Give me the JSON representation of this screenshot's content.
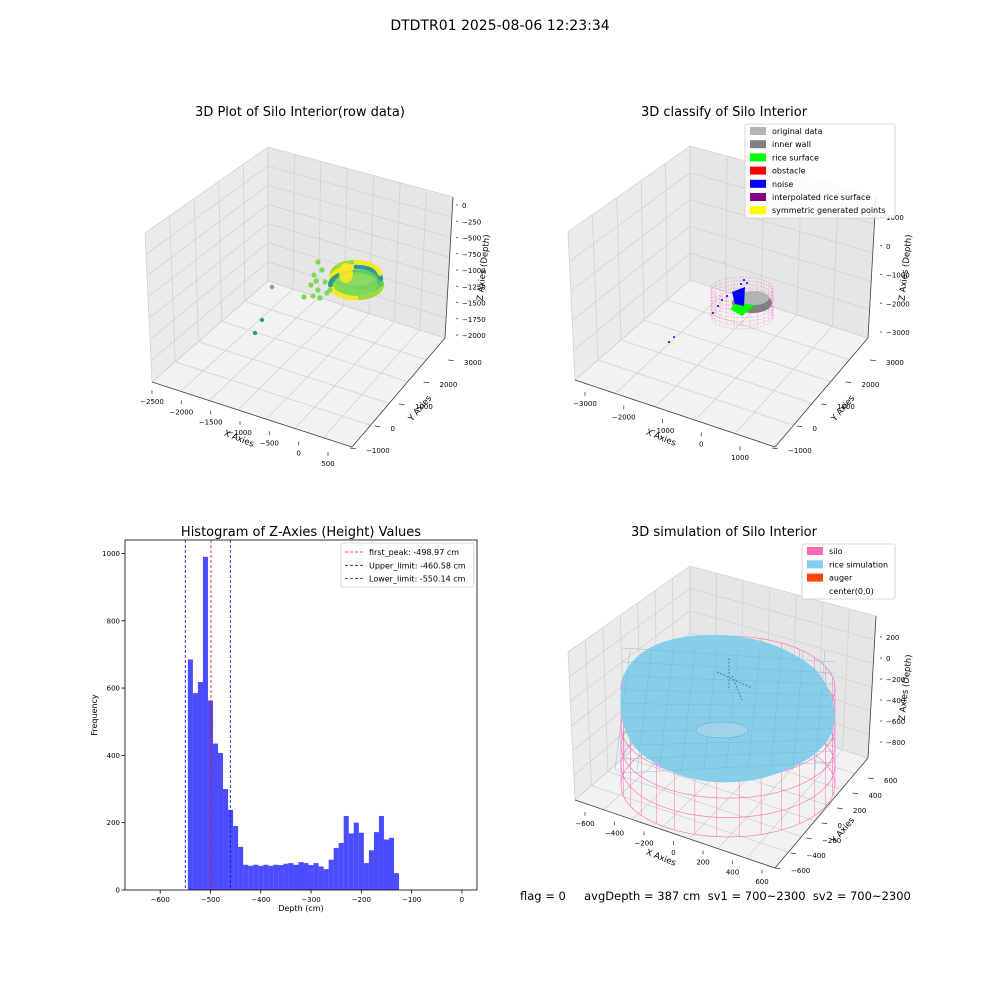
{
  "suptitle": "DTDTR01 2025-08-06 12:23:34",
  "footer": {
    "text": "flag = 0     avgDepth = 387 cm  sv1 = 700~2300  sv2 = 700~2300"
  },
  "chart_data": [
    {
      "type": "scatter",
      "title": "3D Plot of Silo Interior(row data)",
      "xlabel": "X Axies",
      "ylabel": "Y Axies",
      "zlabel": "Z Axies (Depth)",
      "xticks": [
        "−2500",
        "−2000",
        "−1500",
        "−1000",
        "−500",
        "0",
        "500"
      ],
      "yticks": [
        "−1000",
        "0",
        "1000",
        "2000",
        "3000"
      ],
      "zticks": [
        "0",
        "−250",
        "−500",
        "−750",
        "−1000",
        "−1250",
        "−1500",
        "−1750",
        "−2000"
      ],
      "colormap": [
        "#2a9d8f",
        "#5cc863",
        "#a0da39",
        "#fde725"
      ],
      "outliers": [
        {
          "x": -2300,
          "y": 200,
          "z": -1700
        },
        {
          "x": -2100,
          "y": 300,
          "z": -1600
        },
        {
          "x": -1900,
          "y": 1800,
          "z": -1350
        }
      ]
    },
    {
      "type": "scatter",
      "title": "3D classify of Silo Interior",
      "xlabel": "X Axies",
      "ylabel": "Y Axies",
      "zlabel": "Z Axies (Depth)",
      "xticks": [
        "−3000",
        "−2000",
        "−1000",
        "0",
        "1000"
      ],
      "yticks": [
        "−1000",
        "0",
        "1000",
        "2000",
        "3000"
      ],
      "zticks": [
        "1000",
        "0",
        "−1000",
        "−2000",
        "−3000"
      ],
      "legend_position": "top-right",
      "legend": [
        {
          "label": "original data",
          "color": "#b3b3b3"
        },
        {
          "label": "inner wall",
          "color": "#808080"
        },
        {
          "label": "rice surface",
          "color": "#00ff00"
        },
        {
          "label": "obstacle",
          "color": "#ff0000"
        },
        {
          "label": "noise",
          "color": "#0000ff"
        },
        {
          "label": "interpolated rice surface",
          "color": "#800080"
        },
        {
          "label": "symmetric generated points",
          "color": "#ffff00"
        }
      ]
    },
    {
      "type": "bar",
      "title": "Histogram of Z-Axies (Height) Values",
      "xlabel": "Depth (cm)",
      "ylabel": "Frequency",
      "xlim": [
        -670,
        30
      ],
      "ylim": [
        0,
        1040
      ],
      "xticks": [
        -600,
        -500,
        -400,
        -300,
        -200,
        -100,
        0
      ],
      "yticks": [
        0,
        200,
        400,
        600,
        800,
        1000
      ],
      "bin_width": 10,
      "color": "#0000ff",
      "bins": [
        {
          "left": -545,
          "value": 685
        },
        {
          "left": -535,
          "value": 585
        },
        {
          "left": -525,
          "value": 618
        },
        {
          "left": -515,
          "value": 990
        },
        {
          "left": -505,
          "value": 563
        },
        {
          "left": -495,
          "value": 435
        },
        {
          "left": -485,
          "value": 407
        },
        {
          "left": -475,
          "value": 300
        },
        {
          "left": -465,
          "value": 238
        },
        {
          "left": -455,
          "value": 190
        },
        {
          "left": -445,
          "value": 128
        },
        {
          "left": -435,
          "value": 75
        },
        {
          "left": -425,
          "value": 72
        },
        {
          "left": -415,
          "value": 75
        },
        {
          "left": -405,
          "value": 72
        },
        {
          "left": -395,
          "value": 75
        },
        {
          "left": -385,
          "value": 72
        },
        {
          "left": -375,
          "value": 75
        },
        {
          "left": -365,
          "value": 74
        },
        {
          "left": -355,
          "value": 78
        },
        {
          "left": -345,
          "value": 80
        },
        {
          "left": -335,
          "value": 75
        },
        {
          "left": -325,
          "value": 83
        },
        {
          "left": -315,
          "value": 80
        },
        {
          "left": -305,
          "value": 74
        },
        {
          "left": -295,
          "value": 80
        },
        {
          "left": -285,
          "value": 70
        },
        {
          "left": -275,
          "value": 62
        },
        {
          "left": -265,
          "value": 90
        },
        {
          "left": -255,
          "value": 125
        },
        {
          "left": -245,
          "value": 140
        },
        {
          "left": -235,
          "value": 220
        },
        {
          "left": -225,
          "value": 168
        },
        {
          "left": -215,
          "value": 200
        },
        {
          "left": -205,
          "value": 170
        },
        {
          "left": -195,
          "value": 80
        },
        {
          "left": -185,
          "value": 118
        },
        {
          "left": -175,
          "value": 172
        },
        {
          "left": -165,
          "value": 220
        },
        {
          "left": -155,
          "value": 150
        },
        {
          "left": -145,
          "value": 155
        },
        {
          "left": -135,
          "value": 50
        }
      ],
      "vlines": [
        {
          "label": "first_peak: -498.97 cm",
          "value": -498.97,
          "color": "#ff0000"
        },
        {
          "label": "Upper_limit: -460.58 cm",
          "value": -460.58,
          "color": "#0000ff"
        },
        {
          "label": "Lower_limit: -550.14 cm",
          "value": -550.14,
          "color": "#0000ff"
        }
      ]
    },
    {
      "type": "scatter",
      "title": "3D simulation of Silo Interior",
      "xlabel": "X Axies",
      "ylabel": "Y Axies",
      "zlabel": "Z Axies (Depth)",
      "xticks": [
        "−600",
        "−400",
        "−200",
        "0",
        "200",
        "400",
        "600"
      ],
      "yticks": [
        "−600",
        "−400",
        "−200",
        "0",
        "200",
        "400",
        "600"
      ],
      "zticks": [
        "200",
        "0",
        "−200",
        "−400",
        "−600",
        "−800"
      ],
      "legend_position": "top-right",
      "legend": [
        {
          "label": "silo",
          "color": "#ff69b4"
        },
        {
          "label": "rice simulation",
          "color": "#87ceeb"
        },
        {
          "label": "auger",
          "color": "#ff4500"
        },
        {
          "label": "center(0,0)",
          "color": "#ffffff"
        }
      ]
    }
  ]
}
